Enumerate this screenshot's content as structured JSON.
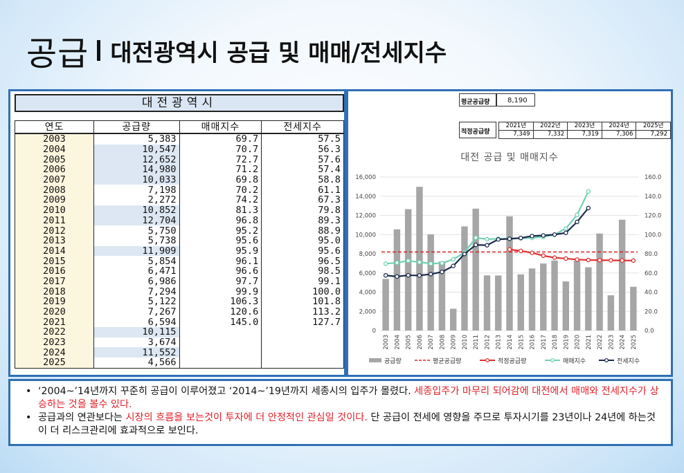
{
  "slide": {
    "title_main": "공급",
    "title_sub": "대전광역시 공급 및 매매/전세지수"
  },
  "table": {
    "title": "대전광역시",
    "headers": [
      "연도",
      "공급량",
      "매매지수",
      "전세지수"
    ],
    "rows": [
      {
        "year": "2003",
        "supply": "5,383",
        "sale": "69.7",
        "jeonse": "57.5",
        "hl": false
      },
      {
        "year": "2004",
        "supply": "10,547",
        "sale": "70.7",
        "jeonse": "56.3",
        "hl": true
      },
      {
        "year": "2005",
        "supply": "12,652",
        "sale": "72.7",
        "jeonse": "57.6",
        "hl": true
      },
      {
        "year": "2006",
        "supply": "14,980",
        "sale": "71.2",
        "jeonse": "57.4",
        "hl": true
      },
      {
        "year": "2007",
        "supply": "10,033",
        "sale": "69.8",
        "jeonse": "58.8",
        "hl": true
      },
      {
        "year": "2008",
        "supply": "7,198",
        "sale": "70.2",
        "jeonse": "61.1",
        "hl": false
      },
      {
        "year": "2009",
        "supply": "2,272",
        "sale": "74.2",
        "jeonse": "67.3",
        "hl": false
      },
      {
        "year": "2010",
        "supply": "10,852",
        "sale": "81.3",
        "jeonse": "79.8",
        "hl": true
      },
      {
        "year": "2011",
        "supply": "12,704",
        "sale": "96.8",
        "jeonse": "89.3",
        "hl": true
      },
      {
        "year": "2012",
        "supply": "5,750",
        "sale": "95.2",
        "jeonse": "88.9",
        "hl": false
      },
      {
        "year": "2013",
        "supply": "5,738",
        "sale": "95.6",
        "jeonse": "95.0",
        "hl": false
      },
      {
        "year": "2014",
        "supply": "11,909",
        "sale": "95.9",
        "jeonse": "95.6",
        "hl": true
      },
      {
        "year": "2015",
        "supply": "5,854",
        "sale": "96.1",
        "jeonse": "96.5",
        "hl": false
      },
      {
        "year": "2016",
        "supply": "6,471",
        "sale": "96.6",
        "jeonse": "98.5",
        "hl": false
      },
      {
        "year": "2017",
        "supply": "6,986",
        "sale": "97.7",
        "jeonse": "99.1",
        "hl": false
      },
      {
        "year": "2018",
        "supply": "7,294",
        "sale": "99.9",
        "jeonse": "100.0",
        "hl": false
      },
      {
        "year": "2019",
        "supply": "5,122",
        "sale": "106.3",
        "jeonse": "101.8",
        "hl": false
      },
      {
        "year": "2020",
        "supply": "7,267",
        "sale": "120.6",
        "jeonse": "113.2",
        "hl": false
      },
      {
        "year": "2021",
        "supply": "6,594",
        "sale": "145.0",
        "jeonse": "127.7",
        "hl": false
      },
      {
        "year": "2022",
        "supply": "10,115",
        "sale": "",
        "jeonse": "",
        "hl": true
      },
      {
        "year": "2023",
        "supply": "3,674",
        "sale": "",
        "jeonse": "",
        "hl": false
      },
      {
        "year": "2024",
        "supply": "11,552",
        "sale": "",
        "jeonse": "",
        "hl": true
      },
      {
        "year": "2025",
        "supply": "4,566",
        "sale": "",
        "jeonse": "",
        "hl": false
      }
    ]
  },
  "summary": {
    "avg_label": "평균공급량",
    "avg_value": "8,190",
    "proper_label": "적정공급량",
    "proper_years": [
      "2021년",
      "2022년",
      "2023년",
      "2024년",
      "2025년"
    ],
    "proper_values": [
      "7,349",
      "7,332",
      "7,319",
      "7,306",
      "7,292"
    ]
  },
  "chart_data": {
    "type": "bar",
    "title": "대전 공급 및 매매지수",
    "categories": [
      "2003",
      "2004",
      "2005",
      "2006",
      "2007",
      "2008",
      "2009",
      "2010",
      "2011",
      "2012",
      "2013",
      "2014",
      "2015",
      "2016",
      "2017",
      "2018",
      "2019",
      "2020",
      "2021",
      "2022",
      "2023",
      "2024",
      "2025"
    ],
    "ylim_left": [
      0,
      16000
    ],
    "ylim_right": [
      0,
      160
    ],
    "yticks_left": [
      "0",
      "2,000",
      "4,000",
      "6,000",
      "8,000",
      "10,000",
      "12,000",
      "14,000",
      "16,000"
    ],
    "yticks_right": [
      "0.0",
      "20.0",
      "40.0",
      "60.0",
      "80.0",
      "100.0",
      "120.0",
      "140.0",
      "160.0"
    ],
    "series": [
      {
        "name": "공급량",
        "type": "bar",
        "axis": "left",
        "color": "#a6a6a6",
        "values": [
          5383,
          10547,
          12652,
          14980,
          10033,
          7198,
          2272,
          10852,
          12704,
          5750,
          5738,
          11909,
          5854,
          6471,
          6986,
          7294,
          5122,
          7267,
          6594,
          10115,
          3674,
          11552,
          4566
        ]
      },
      {
        "name": "평균공급량",
        "type": "line-dashed",
        "axis": "left",
        "color": "#d62020",
        "values": [
          8190,
          8190,
          8190,
          8190,
          8190,
          8190,
          8190,
          8190,
          8190,
          8190,
          8190,
          8190,
          8190,
          8190,
          8190,
          8190,
          8190,
          8190,
          8190,
          8190,
          8190,
          8190,
          8190
        ]
      },
      {
        "name": "적정공급량",
        "type": "line",
        "axis": "left",
        "color": "#e03030",
        "values": [
          null,
          null,
          null,
          null,
          null,
          null,
          null,
          null,
          null,
          null,
          null,
          8450,
          8300,
          8100,
          7800,
          7600,
          7500,
          7400,
          7349,
          7332,
          7319,
          7306,
          7292
        ]
      },
      {
        "name": "매매지수",
        "type": "line",
        "axis": "right",
        "color": "#6fd1b4",
        "values": [
          69.7,
          70.7,
          72.7,
          71.2,
          69.8,
          70.2,
          74.2,
          81.3,
          96.8,
          95.2,
          95.6,
          95.9,
          96.1,
          96.6,
          97.7,
          99.9,
          106.3,
          120.6,
          145.0,
          null,
          null,
          null,
          null
        ]
      },
      {
        "name": "전세지수",
        "type": "line",
        "axis": "right",
        "color": "#1c2a4a",
        "values": [
          57.5,
          56.3,
          57.6,
          57.4,
          58.8,
          61.1,
          67.3,
          79.8,
          89.3,
          88.9,
          95.0,
          95.6,
          96.5,
          98.5,
          99.1,
          100.0,
          101.8,
          113.2,
          127.7,
          null,
          null,
          null,
          null
        ]
      }
    ],
    "legend": "bottom"
  },
  "notes": [
    [
      {
        "t": "‘2004~’14년까지 꾸준히 공급이 이루어졌고 ‘2014~’19년까지 세종시의 입주가 몰렸다. ",
        "red": false
      },
      {
        "t": "세종입주가 마무리 되어감에 대전에서 매매와 전세지수가 상승하는 것을 볼수 있다.",
        "red": true
      }
    ],
    [
      {
        "t": "공급과의 연관보다는 ",
        "red": false
      },
      {
        "t": "시장의 흐름을 보는것이 투자에 더 안정적인 관심일 것이다.",
        "red": true
      },
      {
        "t": " 단 공급이 전세에 영향을 주므로 투자시기를 23년이나 24년에 하는것이 더 리스크관리에 효과적으로 보인다.",
        "red": false
      }
    ]
  ]
}
